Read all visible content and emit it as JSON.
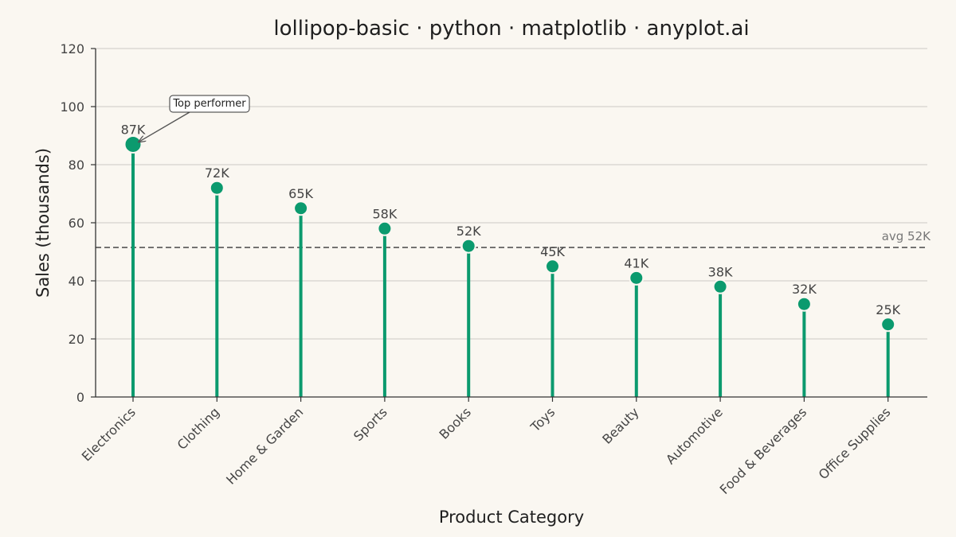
{
  "chart_data": {
    "type": "lollipop",
    "title": "lollipop-basic · python · matplotlib · anyplot.ai",
    "xlabel": "Product Category",
    "ylabel": "Sales (thousands)",
    "categories": [
      "Electronics",
      "Clothing",
      "Home & Garden",
      "Sports",
      "Books",
      "Toys",
      "Beauty",
      "Automotive",
      "Food & Beverages",
      "Office Supplies"
    ],
    "values": [
      87,
      72,
      65,
      58,
      52,
      45,
      41,
      38,
      32,
      25
    ],
    "value_labels": [
      "87K",
      "72K",
      "65K",
      "58K",
      "52K",
      "45K",
      "41K",
      "38K",
      "32K",
      "25K"
    ],
    "ylim": [
      0,
      120
    ],
    "yticks": [
      0,
      20,
      40,
      60,
      80,
      100,
      120
    ],
    "grid": "horizontal",
    "reference_line": {
      "value": 51.5,
      "label": "avg 52K"
    },
    "annotation": {
      "text": "Top performer",
      "category": "Electronics",
      "value": 87
    },
    "colors": {
      "lollipop": "#0b9a6e",
      "background": "#faf7f1",
      "grid": "#d5d3ce",
      "reference_line": "#555555"
    }
  }
}
